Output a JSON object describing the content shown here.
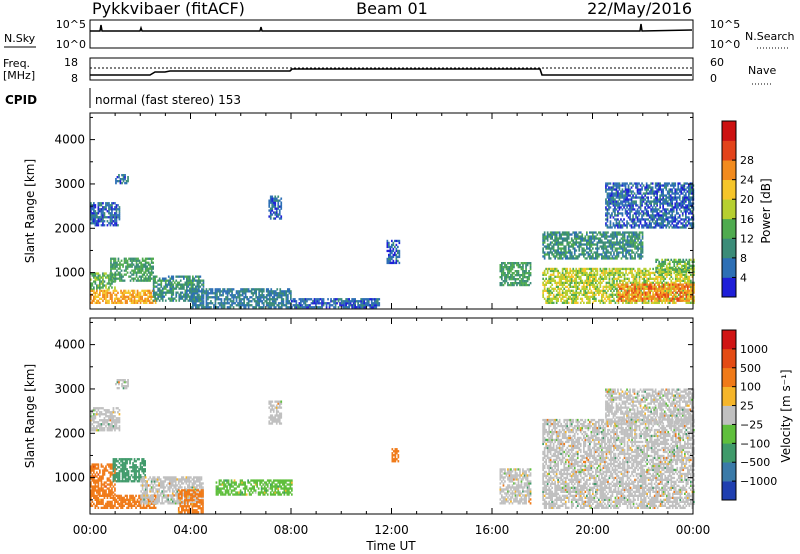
{
  "header": {
    "station": "Pykkvibaer (fitACF)",
    "beam": "Beam 01",
    "date": "22/May/2016"
  },
  "panels": {
    "nsky_label": "N.Sky",
    "nsearch_label": "N.Search",
    "freq_label_top": "Freq.",
    "freq_label_unit": "[MHz]",
    "nave_label": "Nave",
    "cpid_label": "CPID",
    "cpid_text": "normal (fast stereo) 153",
    "nsky_ticks": [
      "10^5",
      "10^0"
    ],
    "nsearch_ticks": [
      "10^5",
      "10^0"
    ],
    "freq_ticks": [
      "18",
      "8"
    ],
    "nave_ticks": [
      "60",
      "0"
    ]
  },
  "axes": {
    "xlabel": "Time UT",
    "xticks": [
      "00:00",
      "04:00",
      "08:00",
      "12:00",
      "16:00",
      "20:00",
      "00:00"
    ],
    "ylabel": "Slant Range [km]",
    "yticks": [
      "1000",
      "2000",
      "3000",
      "4000"
    ]
  },
  "power_scale": {
    "label": "Power [dB]",
    "ticks": [
      "4",
      "8",
      "12",
      "16",
      "20",
      "24",
      "28"
    ],
    "colors": [
      "#1f1fd8",
      "#2d6fb5",
      "#3b8c78",
      "#4fab4f",
      "#b6cf30",
      "#f5c52a",
      "#f28b1e",
      "#e3431b",
      "#cc1111"
    ]
  },
  "velocity_scale": {
    "label": "Velocity [m s⁻¹]",
    "ticks": [
      "1000",
      "500",
      "100",
      "25",
      "−25",
      "−100",
      "−500",
      "−1000"
    ],
    "colors": [
      "#1f3fb0",
      "#3a7aa8",
      "#3f9a6a",
      "#5fbf3c",
      "#c0c0c0",
      "#f5b52a",
      "#f07a18",
      "#e44b14",
      "#d01414"
    ]
  },
  "chart_data": {
    "type": "heatmap",
    "title": "Pykkvibaer (fitACF) Beam 01 22/May/2016",
    "xlabel": "Time UT",
    "ylabel": "Slant Range [km]",
    "xlim": [
      0,
      24
    ],
    "ylim": [
      180,
      4600
    ],
    "panels": [
      {
        "name": "Power [dB]",
        "regions": [
          {
            "t": [
              0.0,
              1.2
            ],
            "r": [
              2050,
              2550
            ],
            "value": 6
          },
          {
            "t": [
              1.0,
              1.5
            ],
            "r": [
              3000,
              3200
            ],
            "value": 6
          },
          {
            "t": [
              0.0,
              1.0
            ],
            "r": [
              600,
              1000
            ],
            "value": 14
          },
          {
            "t": [
              0.0,
              2.6
            ],
            "r": [
              300,
              600
            ],
            "value": 24
          },
          {
            "t": [
              0.8,
              2.5
            ],
            "r": [
              800,
              1300
            ],
            "value": 12
          },
          {
            "t": [
              2.5,
              4.5
            ],
            "r": [
              350,
              900
            ],
            "value": 10
          },
          {
            "t": [
              4.0,
              8.0
            ],
            "r": [
              200,
              650
            ],
            "value": 8
          },
          {
            "t": [
              7.1,
              7.6
            ],
            "r": [
              2200,
              2700
            ],
            "value": 6
          },
          {
            "t": [
              8.0,
              11.5
            ],
            "r": [
              200,
              400
            ],
            "value": 6
          },
          {
            "t": [
              11.8,
              12.3
            ],
            "r": [
              1200,
              1700
            ],
            "value": 5
          },
          {
            "t": [
              16.3,
              17.5
            ],
            "r": [
              700,
              1200
            ],
            "value": 12
          },
          {
            "t": [
              18.0,
              22.0
            ],
            "r": [
              1300,
              1900
            ],
            "value": 10
          },
          {
            "t": [
              18.0,
              24.0
            ],
            "r": [
              300,
              1100
            ],
            "value": 18
          },
          {
            "t": [
              21.0,
              24.0
            ],
            "r": [
              350,
              750
            ],
            "value": 26
          },
          {
            "t": [
              20.5,
              24.0
            ],
            "r": [
              2000,
              3000
            ],
            "value": 6
          },
          {
            "t": [
              22.5,
              24.0
            ],
            "r": [
              1000,
              1300
            ],
            "value": 14
          }
        ]
      },
      {
        "name": "Velocity [m s-1]",
        "regions": [
          {
            "t": [
              0.0,
              1.2
            ],
            "r": [
              2050,
              2550
            ],
            "value": 0
          },
          {
            "t": [
              1.0,
              1.5
            ],
            "r": [
              3000,
              3200
            ],
            "value": 0
          },
          {
            "t": [
              0.0,
              1.0
            ],
            "r": [
              600,
              1300
            ],
            "value": -400
          },
          {
            "t": [
              0.0,
              2.6
            ],
            "r": [
              300,
              600
            ],
            "value": -200
          },
          {
            "t": [
              0.9,
              2.2
            ],
            "r": [
              900,
              1400
            ],
            "value": 300
          },
          {
            "t": [
              2.0,
              4.5
            ],
            "r": [
              400,
              1000
            ],
            "value": 0
          },
          {
            "t": [
              3.5,
              4.5
            ],
            "r": [
              200,
              700
            ],
            "value": -200
          },
          {
            "t": [
              5.0,
              8.0
            ],
            "r": [
              600,
              950
            ],
            "value": 60
          },
          {
            "t": [
              7.1,
              7.6
            ],
            "r": [
              2200,
              2700
            ],
            "value": 0
          },
          {
            "t": [
              12.0,
              12.3
            ],
            "r": [
              1350,
              1650
            ],
            "value": -300
          },
          {
            "t": [
              16.3,
              17.5
            ],
            "r": [
              400,
              1200
            ],
            "value": 0
          },
          {
            "t": [
              18.0,
              24.0
            ],
            "r": [
              300,
              2300
            ],
            "value": 0
          },
          {
            "t": [
              20.5,
              24.0
            ],
            "r": [
              2200,
              3000
            ],
            "value": 0
          }
        ]
      }
    ],
    "lines": {
      "nsky": {
        "level": "near 10^5"
      },
      "freq": [
        {
          "t": [
            0,
            7.9
          ],
          "value": 10
        },
        {
          "t": [
            7.9,
            18.0
          ],
          "value": 12
        },
        {
          "t": [
            18.0,
            24
          ],
          "value": 10
        }
      ]
    }
  }
}
